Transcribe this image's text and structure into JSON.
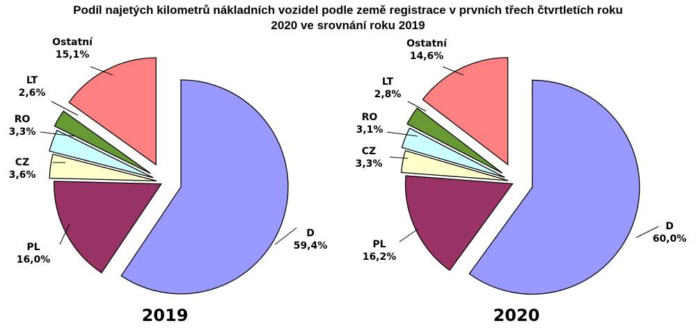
{
  "title_line1": "Podíl najetých kilometrů nákladních vozidel podle země registrace v prvních třech čtvrtletích roku",
  "title_line2": "2020 ve srovnání roku 2019",
  "chart_data": [
    {
      "type": "pie",
      "label": "2019",
      "slices": [
        {
          "name": "D",
          "value": 59.4,
          "display": "59,4%",
          "color": "#9999ff"
        },
        {
          "name": "PL",
          "value": 16.0,
          "display": "16,0%",
          "color": "#993366"
        },
        {
          "name": "CZ",
          "value": 3.6,
          "display": "3,6%",
          "color": "#ffffcc"
        },
        {
          "name": "RO",
          "value": 3.3,
          "display": "3,3%",
          "color": "#ccffff"
        },
        {
          "name": "LT",
          "value": 2.6,
          "display": "2,6%",
          "color": "#669933"
        },
        {
          "name": "Ostatní",
          "value": 15.1,
          "display": "15,1%",
          "color": "#ff8080"
        }
      ]
    },
    {
      "type": "pie",
      "label": "2020",
      "slices": [
        {
          "name": "D",
          "value": 60.0,
          "display": "60,0%",
          "color": "#9999ff"
        },
        {
          "name": "PL",
          "value": 16.2,
          "display": "16,2%",
          "color": "#993366"
        },
        {
          "name": "CZ",
          "value": 3.3,
          "display": "3,3%",
          "color": "#ffffcc"
        },
        {
          "name": "RO",
          "value": 3.1,
          "display": "3,1%",
          "color": "#ccffff"
        },
        {
          "name": "LT",
          "value": 2.8,
          "display": "2,8%",
          "color": "#669933"
        },
        {
          "name": "Ostatní",
          "value": 14.6,
          "display": "14,6%",
          "color": "#ff8080"
        }
      ]
    }
  ]
}
